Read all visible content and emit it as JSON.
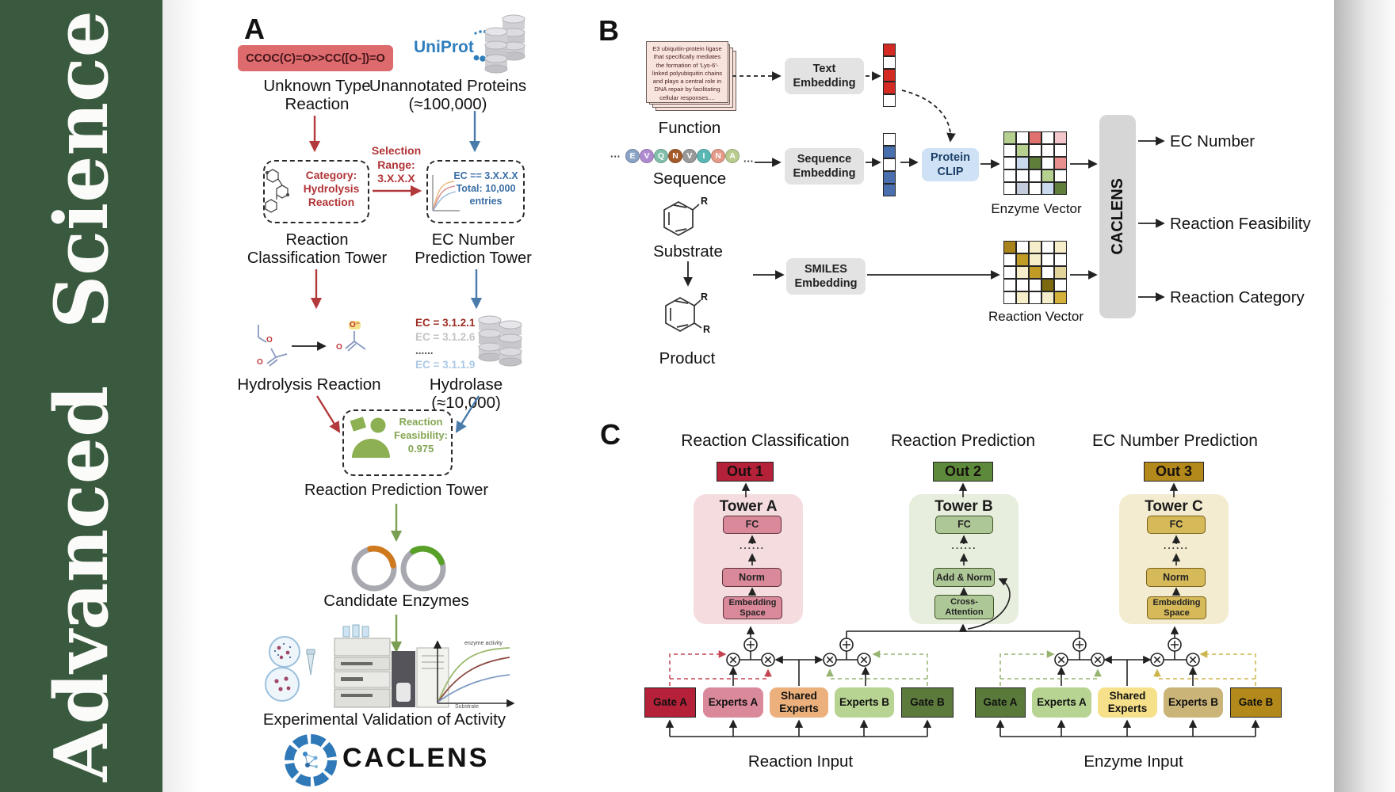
{
  "sidebar": {
    "word1": "Advanced",
    "word2": "Science"
  },
  "panelA": {
    "label": "A",
    "smiles": "CCOC(C)=O>>CC([O-])=O",
    "unknown_caption": "Unknown Type Reaction",
    "uniprot": "UniProt",
    "unannotated_caption": "Unannotated Proteins (≈100,000)",
    "category_note": "Category: Hydrolysis Reaction",
    "selection_note": "Selection Range: 3.X.X.X",
    "ec_match": "EC == 3.X.X.X",
    "ec_total": "Total: 10,000 entries",
    "tower_left": "Reaction Classification Tower",
    "tower_right": "EC Number Prediction Tower",
    "hydrolysis_caption": "Hydrolysis Reaction",
    "ec_list": [
      {
        "text": "EC = 3.1.2.1",
        "color": "#9c2d22"
      },
      {
        "text": "EC = 3.1.2.6",
        "color": "#c6c2c2"
      },
      {
        "text": "......",
        "color": "#555555"
      },
      {
        "text": "EC = 3.1.1.9",
        "color": "#abc8e6"
      }
    ],
    "hydrolase_caption": "Hydrolase (≈10,000)",
    "enzyme_badge": "Enzyme",
    "feasibility_note": "Reaction Feasibility: 0.975",
    "tower_bottom": "Reaction Prediction Tower",
    "candidates_caption": "Candidate Enzymes",
    "graph": {
      "curve_label": "enzyme activity",
      "ylabel": "Rate of reaction",
      "xlabel": "Substrate"
    },
    "validation_caption": "Experimental Validation of Activity",
    "logo": "CACLENS",
    "atoms": {
      "o": "O",
      "o_minus": "O⁻"
    }
  },
  "panelB": {
    "label": "B",
    "function_text": "E3 ubiquitin-protein ligase that specifically mediates the formation of 'Lys-6'-linked polyubiquitin chains and plays a central role in DNA repair by facilitating cellular responses....",
    "function_caption": "Function",
    "ellipsis": "···",
    "sequence": [
      {
        "letter": "E",
        "color": "#8ba3c4"
      },
      {
        "letter": "V",
        "color": "#b08ad0"
      },
      {
        "letter": "Q",
        "color": "#82c0ac"
      },
      {
        "letter": "N",
        "color": "#a55a2a"
      },
      {
        "letter": "V",
        "color": "#9a9a9a"
      },
      {
        "letter": "I",
        "color": "#5ab8b4"
      },
      {
        "letter": "N",
        "color": "#e49a88"
      },
      {
        "letter": "A",
        "color": "#b8cc90"
      }
    ],
    "sequence_caption": "Sequence",
    "substrate_caption": "Substrate",
    "product_caption": "Product",
    "r_group": "R",
    "text_embedding": "Text Embedding",
    "sequence_embedding": "Sequence Embedding",
    "smiles_embedding": "SMILES Embedding",
    "protein_clip": "Protein CLIP",
    "text_vector": [
      "#d42a24",
      "#ffffff",
      "#d42a24",
      "#d42a24",
      "#ffffff"
    ],
    "sequence_vector": [
      "#ffffff",
      "#4a6fae",
      "#ffffff",
      "#4a6fae",
      "#4a6fae"
    ],
    "enzyme_vector": [
      [
        "#b6d18f",
        "#ffffff",
        "#e0716e",
        "#ffffff",
        "#f3c6cb"
      ],
      [
        "#ffffff",
        "#b6d18f",
        "#ffffff",
        "#ffffff",
        "#ffffff"
      ],
      [
        "#ffffff",
        "#c9d9ee",
        "#5e7e39",
        "#ffffff",
        "#e8908d"
      ],
      [
        "#ffffff",
        "#ffffff",
        "#ffffff",
        "#b6d18f",
        "#ffffff"
      ],
      [
        "#ffffff",
        "#c3cbdc",
        "#ffffff",
        "#c9d9ee",
        "#5e7e39"
      ]
    ],
    "reaction_vector": [
      [
        "#a8821a",
        "#ffffff",
        "#f6edca",
        "#ffffff",
        "#f6edca"
      ],
      [
        "#ffffff",
        "#c09b25",
        "#f6edca",
        "#ffffff",
        "#ffffff"
      ],
      [
        "#ffffff",
        "#f6edca",
        "#c09b25",
        "#ffffff",
        "#e3d49c"
      ],
      [
        "#ffffff",
        "#ffffff",
        "#ffffff",
        "#7c680e",
        "#ffffff"
      ],
      [
        "#ffffff",
        "#f6edca",
        "#ffffff",
        "#f6edca",
        "#d4b23a"
      ]
    ],
    "enzyme_vector_caption": "Enzyme Vector",
    "reaction_vector_caption": "Reaction Vector",
    "caclens": "CACLENS",
    "outputs": [
      "EC Number",
      "Reaction Feasibility",
      "Reaction Category"
    ]
  },
  "panelC": {
    "label": "C",
    "columns": [
      {
        "title": "Reaction Classification",
        "out": "Out 1",
        "tower": "Tower A",
        "layers": [
          "FC",
          "......",
          "Norm",
          "Embedding Space"
        ]
      },
      {
        "title": "Reaction Prediction",
        "out": "Out 2",
        "tower": "Tower B",
        "layers": [
          "FC",
          "......",
          "Add & Norm",
          "Cross-Attention"
        ]
      },
      {
        "title": "EC Number Prediction",
        "out": "Out 3",
        "tower": "Tower C",
        "layers": [
          "FC",
          "......",
          "Norm",
          "Embedding Space"
        ]
      }
    ],
    "moe_left": {
      "gate_a": "Gate A",
      "experts_a": "Experts A",
      "shared": "Shared Experts",
      "experts_b": "Experts B",
      "gate_b": "Gate B",
      "input": "Reaction Input"
    },
    "moe_right": {
      "gate_a": "Gate A",
      "experts_a": "Experts A",
      "shared": "Shared Experts",
      "experts_b": "Experts B",
      "gate_b": "Gate B",
      "input": "Enzyme Input"
    }
  }
}
